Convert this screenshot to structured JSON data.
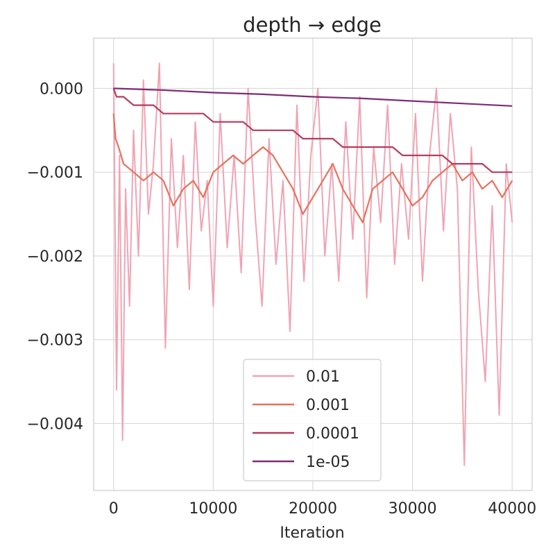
{
  "chart_data": {
    "type": "line",
    "title": "depth → edge",
    "xlabel": "Iteration",
    "ylabel": "",
    "xlim": [
      -2000,
      42000
    ],
    "ylim": [
      -0.0048,
      0.0006
    ],
    "xticks": [
      0,
      10000,
      20000,
      30000,
      40000
    ],
    "xtick_labels": [
      "0",
      "10000",
      "20000",
      "30000",
      "40000"
    ],
    "yticks": [
      0.0,
      -0.001,
      -0.002,
      -0.003,
      -0.004
    ],
    "ytick_labels": [
      "0.000",
      "−0.001",
      "−0.002",
      "−0.003",
      "−0.004"
    ],
    "grid": true,
    "legend_position": "lower center",
    "series": [
      {
        "name": "0.01",
        "color": "#f0a3b3",
        "x": [
          0,
          300,
          600,
          900,
          1200,
          1600,
          2000,
          2500,
          3000,
          3500,
          4000,
          4600,
          5200,
          5800,
          6400,
          7000,
          7600,
          8200,
          8800,
          9400,
          10000,
          10700,
          11400,
          12100,
          12800,
          13500,
          14200,
          14900,
          15600,
          16300,
          17000,
          17700,
          18400,
          19100,
          19800,
          20500,
          21200,
          21900,
          22600,
          23300,
          24000,
          24700,
          25400,
          26100,
          26800,
          27500,
          28200,
          28900,
          29600,
          30300,
          31000,
          31700,
          32400,
          33100,
          33800,
          34500,
          35200,
          35500,
          35900,
          36600,
          37300,
          38000,
          38700,
          39400,
          40000
        ],
        "values": [
          0.0003,
          -0.0036,
          -0.0008,
          -0.0042,
          -0.0012,
          -0.0026,
          -0.0005,
          -0.002,
          0.0001,
          -0.0015,
          -0.0009,
          0.0003,
          -0.0031,
          -0.0006,
          -0.0019,
          -0.0008,
          -0.0024,
          -0.0004,
          -0.0017,
          -0.0011,
          -0.0026,
          -0.0003,
          -0.0019,
          -0.0008,
          -0.0022,
          0.0,
          -0.0015,
          -0.0026,
          -0.0006,
          -0.0021,
          -0.0011,
          -0.0029,
          -0.0002,
          -0.0023,
          -0.0008,
          0.0,
          -0.002,
          -0.0009,
          -0.0023,
          -0.0004,
          -0.0018,
          -0.0001,
          -0.0025,
          -0.0007,
          -0.0016,
          -0.0002,
          -0.0021,
          -0.0009,
          -0.0018,
          -0.0003,
          -0.0023,
          -0.0008,
          0.0,
          -0.0017,
          -0.0003,
          -0.0012,
          -0.0045,
          -0.0028,
          -0.0007,
          -0.0024,
          -0.0035,
          -0.0014,
          -0.0039,
          -0.0009,
          -0.0016
        ]
      },
      {
        "name": "0.001",
        "color": "#e8705c",
        "x": [
          0,
          200,
          500,
          1000,
          2000,
          3000,
          4000,
          5000,
          6000,
          7000,
          8000,
          9000,
          10000,
          11000,
          12000,
          13000,
          14000,
          15000,
          16000,
          17000,
          18000,
          19000,
          20000,
          21000,
          22000,
          23000,
          24000,
          25000,
          26000,
          27000,
          28000,
          29000,
          30000,
          31000,
          32000,
          33000,
          34000,
          35000,
          36000,
          37000,
          38000,
          39000,
          40000
        ],
        "values": [
          -0.0003,
          -0.0006,
          -0.0007,
          -0.0009,
          -0.001,
          -0.0011,
          -0.001,
          -0.0011,
          -0.0014,
          -0.0012,
          -0.0011,
          -0.0013,
          -0.001,
          -0.0009,
          -0.0008,
          -0.0009,
          -0.0008,
          -0.0007,
          -0.0008,
          -0.001,
          -0.0012,
          -0.0015,
          -0.0013,
          -0.0011,
          -0.0009,
          -0.0012,
          -0.0014,
          -0.0016,
          -0.0012,
          -0.0011,
          -0.001,
          -0.0012,
          -0.0014,
          -0.0013,
          -0.0011,
          -0.001,
          -0.0009,
          -0.0011,
          -0.001,
          -0.0012,
          -0.0011,
          -0.0013,
          -0.0011
        ]
      },
      {
        "name": "0.0001",
        "color": "#b83a5e",
        "x": [
          0,
          300,
          1000,
          2000,
          3000,
          4000,
          5000,
          6000,
          7000,
          8000,
          9000,
          10000,
          11000,
          12000,
          13000,
          14000,
          15000,
          16000,
          17000,
          18000,
          19000,
          20000,
          21000,
          22000,
          23000,
          24000,
          25000,
          26000,
          27000,
          28000,
          29000,
          30000,
          31000,
          32000,
          33000,
          34000,
          35000,
          36000,
          37000,
          38000,
          39000,
          40000
        ],
        "values": [
          0.0,
          -0.0001,
          -0.0001,
          -0.0002,
          -0.0002,
          -0.0002,
          -0.0003,
          -0.0003,
          -0.0003,
          -0.0003,
          -0.0003,
          -0.0004,
          -0.0004,
          -0.0004,
          -0.0004,
          -0.0005,
          -0.0005,
          -0.0005,
          -0.0005,
          -0.0005,
          -0.0006,
          -0.0006,
          -0.0006,
          -0.0006,
          -0.0007,
          -0.0007,
          -0.0007,
          -0.0007,
          -0.0007,
          -0.0007,
          -0.0008,
          -0.0008,
          -0.0008,
          -0.0008,
          -0.0008,
          -0.0009,
          -0.0009,
          -0.0009,
          -0.0009,
          -0.001,
          -0.001,
          -0.001
        ]
      },
      {
        "name": "1e-05",
        "color": "#7e2a72",
        "x": [
          0,
          5000,
          10000,
          15000,
          20000,
          25000,
          30000,
          35000,
          40000
        ],
        "values": [
          0.0,
          -2e-05,
          -5e-05,
          -7e-05,
          -0.0001,
          -0.00012,
          -0.00015,
          -0.00018,
          -0.00021
        ]
      }
    ]
  }
}
